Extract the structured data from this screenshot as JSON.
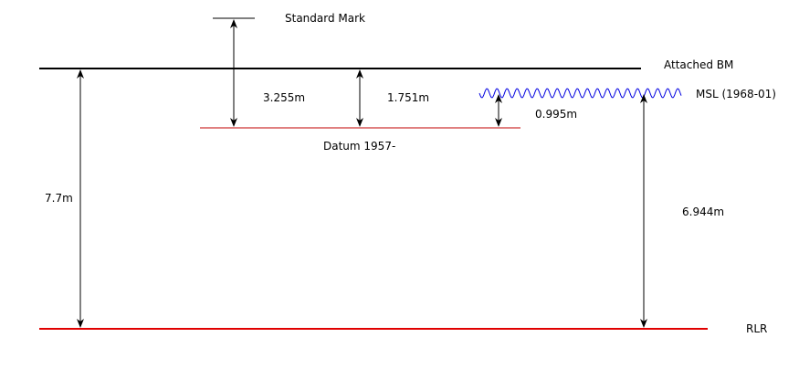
{
  "labels": {
    "standard_mark": "Standard Mark",
    "attached_bm": "Attached BM",
    "msl": "MSL (1968-01)",
    "datum": "Datum 1957-",
    "rlr": "RLR"
  },
  "measurements": {
    "standard_mark_to_datum": "3.255m",
    "attached_bm_to_datum": "1.751m",
    "msl_to_datum": "0.995m",
    "attached_bm_to_rlr": "7.7m",
    "msl_to_rlr": "6.944m"
  },
  "colors": {
    "black_line": "#000000",
    "red_line": "#e00000",
    "datum_line": "#c00000",
    "msl_wave": "#0000e0"
  }
}
